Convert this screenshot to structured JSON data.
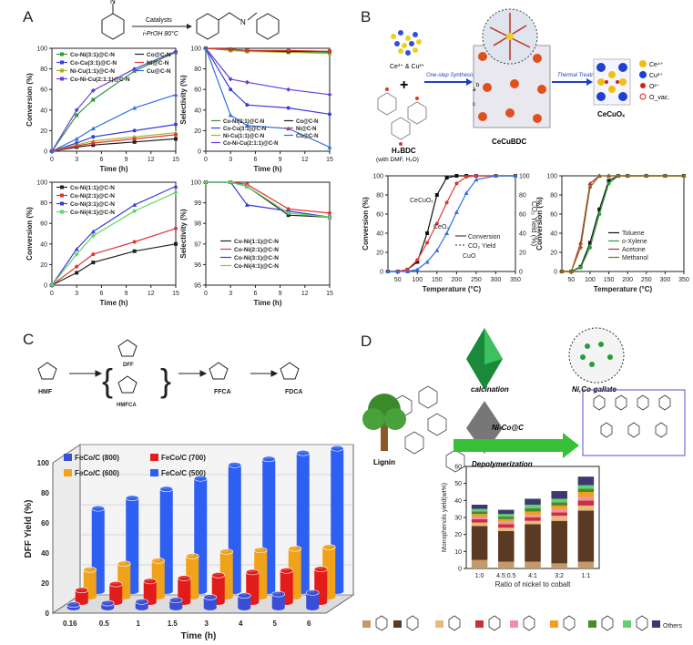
{
  "panels": {
    "a": {
      "letter": "A"
    },
    "b": {
      "letter": "B"
    },
    "c": {
      "letter": "C"
    },
    "d": {
      "letter": "D"
    }
  },
  "scheme_a": {
    "catalyst_label": "Catalysts",
    "condition": "i-PrOH 80°C"
  },
  "scheme_b": {
    "metal_label": "Ce³⁺ & Cu²⁺",
    "linker_label": "H₂BDC",
    "linker_note": "(with DMF, H₂O)",
    "step1": "One-step Synthesis",
    "step2": "Thermal Treatment",
    "mof_label": "CeCuBDC",
    "product_label": "CeCuOₓ",
    "axis_a": "a",
    "axis_b": "b",
    "axis_c": "c",
    "legend": [
      "Ce⁴⁺",
      "Cu²⁺",
      "O²⁻",
      "O_vac."
    ]
  },
  "scheme_c": {
    "hmf": "HMF",
    "dff": "DFF",
    "hmfca": "HMFCA",
    "ffca": "FFCA",
    "fdca": "FDCA"
  },
  "scheme_d": {
    "calcination": "calcination",
    "mof_label": "Ni,Co-gallate",
    "catalyst": "Ni-Co@C",
    "depolymerization": "Depolymerization",
    "lignin": "Lignin",
    "others": "Others"
  },
  "chart_data": [
    {
      "id": "a1",
      "type": "line",
      "xlabel": "Time (h)",
      "ylabel": "Conversion (%)",
      "xlim": [
        0,
        15
      ],
      "ylim": [
        0,
        100
      ],
      "xticks": [
        0,
        3,
        6,
        9,
        12,
        15
      ],
      "yticks": [
        0,
        20,
        40,
        60,
        80,
        100
      ],
      "x": [
        0,
        3,
        5,
        10,
        15
      ],
      "series": [
        {
          "name": "Co-Ni(3:1)@C-N",
          "color": "#2e9b3b",
          "values": [
            0,
            35,
            50,
            78,
            96
          ]
        },
        {
          "name": "Co-Cu(3:1)@C-N",
          "color": "#3b3bd9",
          "values": [
            0,
            8,
            14,
            20,
            26
          ]
        },
        {
          "name": "Ni-Cu(1:1)@C-N",
          "color": "#a8b41e",
          "values": [
            0,
            6,
            10,
            14,
            18
          ]
        },
        {
          "name": "Co-Ni-Cu(2:1:1)@C-N",
          "color": "#6b3bd9",
          "values": [
            0,
            40,
            59,
            80,
            97
          ]
        },
        {
          "name": "Co@C-N",
          "color": "#222222",
          "values": [
            0,
            4,
            6,
            9,
            12
          ]
        },
        {
          "name": "Ni@C-N",
          "color": "#e03535",
          "values": [
            0,
            5,
            8,
            12,
            16
          ]
        },
        {
          "name": "Cu@C-N",
          "color": "#2f6fe0",
          "values": [
            0,
            12,
            22,
            42,
            55
          ]
        }
      ]
    },
    {
      "id": "a2",
      "type": "line",
      "xlabel": "Time (h)",
      "ylabel": "Selectivity (%)",
      "xlim": [
        0,
        15
      ],
      "ylim": [
        0,
        100
      ],
      "xticks": [
        0,
        3,
        6,
        9,
        12,
        15
      ],
      "yticks": [
        0,
        20,
        40,
        60,
        80,
        100
      ],
      "x": [
        0,
        3,
        5,
        10,
        15
      ],
      "series": [
        {
          "name": "Co-Ni(3:1)@C-N",
          "color": "#2e9b3b",
          "values": [
            100,
            98,
            97,
            97,
            96
          ]
        },
        {
          "name": "Co-Cu(3:1)@C-N",
          "color": "#3b3bd9",
          "values": [
            100,
            60,
            45,
            42,
            36
          ]
        },
        {
          "name": "Ni-Cu(1:1)@C-N",
          "color": "#a8b41e",
          "values": [
            100,
            98,
            97,
            96,
            95
          ]
        },
        {
          "name": "Co-Ni-Cu(2:1:1)@C-N",
          "color": "#6b3bd9",
          "values": [
            100,
            70,
            67,
            60,
            55
          ]
        },
        {
          "name": "Co@C-N",
          "color": "#222222",
          "values": [
            100,
            99,
            98,
            97,
            97
          ]
        },
        {
          "name": "Ni@C-N",
          "color": "#e03535",
          "values": [
            100,
            99,
            98,
            98,
            97
          ]
        },
        {
          "name": "Cu@C-N",
          "color": "#2f6fe0",
          "values": [
            100,
            35,
            25,
            22,
            4
          ]
        }
      ]
    },
    {
      "id": "a3",
      "type": "line",
      "xlabel": "Time (h)",
      "ylabel": "Conversion (%)",
      "xlim": [
        0,
        15
      ],
      "ylim": [
        0,
        100
      ],
      "xticks": [
        0,
        3,
        6,
        9,
        12,
        15
      ],
      "yticks": [
        0,
        20,
        40,
        60,
        80,
        100
      ],
      "x": [
        0,
        3,
        5,
        10,
        15
      ],
      "series": [
        {
          "name": "Co-Ni(1:1)@C-N",
          "color": "#222222",
          "values": [
            0,
            12,
            22,
            33,
            40
          ]
        },
        {
          "name": "Co-Ni(2:1)@C-N",
          "color": "#e03535",
          "values": [
            0,
            18,
            30,
            42,
            55
          ]
        },
        {
          "name": "Co-Ni(3:1)@C-N",
          "color": "#3b3bd9",
          "values": [
            0,
            35,
            52,
            78,
            96
          ]
        },
        {
          "name": "Co-Ni(4:1)@C-N",
          "color": "#5fd65f",
          "values": [
            0,
            30,
            48,
            72,
            90
          ]
        }
      ]
    },
    {
      "id": "a4",
      "type": "line",
      "xlabel": "Time (h)",
      "ylabel": "Selectivity (%)",
      "xlim": [
        0,
        15
      ],
      "ylim": [
        95,
        100
      ],
      "xticks": [
        0,
        3,
        6,
        9,
        12,
        15
      ],
      "yticks": [
        95,
        96,
        97,
        98,
        99,
        100
      ],
      "x": [
        0,
        3,
        5,
        10,
        15
      ],
      "series": [
        {
          "name": "Co-Ni(1:1)@C-N",
          "color": "#222222",
          "values": [
            100,
            100,
            99.8,
            98.4,
            98.3
          ]
        },
        {
          "name": "Co-Ni(2:1)@C-N",
          "color": "#e03535",
          "values": [
            100,
            100,
            99.9,
            98.7,
            98.5
          ]
        },
        {
          "name": "Co-Ni(3:1)@C-N",
          "color": "#3b3bd9",
          "values": [
            100,
            100,
            98.9,
            98.6,
            98.3
          ]
        },
        {
          "name": "Co-Ni(4:1)@C-N",
          "color": "#5fd65f",
          "values": [
            100,
            100,
            99.8,
            98.5,
            98.3
          ]
        }
      ]
    },
    {
      "id": "b1",
      "type": "line",
      "xlabel": "Temperature (°C)",
      "ylabel": "Conversion (%)",
      "ylabel2": "CO₂ Yield (%)",
      "xlim": [
        25,
        350
      ],
      "ylim": [
        0,
        100
      ],
      "xticks": [
        50,
        100,
        150,
        200,
        250,
        300,
        350
      ],
      "yticks": [
        0,
        20,
        40,
        60,
        80,
        100
      ],
      "x": [
        25,
        50,
        75,
        100,
        125,
        150,
        175,
        200,
        225,
        250,
        300,
        350
      ],
      "annotations": [
        "CeCuOₓ",
        "CeO₂",
        "CuO"
      ],
      "legend": [
        "Conversion",
        "CO₂ Yield"
      ],
      "series": [
        {
          "name": "CeCuOₓ",
          "color": "#111111",
          "values": [
            0,
            0,
            2,
            10,
            40,
            80,
            98,
            100,
            100,
            100,
            100,
            100
          ]
        },
        {
          "name": "CeO₂",
          "color": "#e03535",
          "values": [
            0,
            0,
            2,
            12,
            30,
            50,
            72,
            92,
            99,
            100,
            100,
            100
          ]
        },
        {
          "name": "CuO",
          "color": "#2f6fe0",
          "values": [
            0,
            0,
            0,
            2,
            10,
            22,
            40,
            62,
            82,
            96,
            100,
            100
          ]
        }
      ]
    },
    {
      "id": "b2",
      "type": "line",
      "xlabel": "Temperature (°C)",
      "ylabel": "Conversion (%)",
      "xlim": [
        25,
        350
      ],
      "ylim": [
        0,
        100
      ],
      "xticks": [
        50,
        100,
        150,
        200,
        250,
        300,
        350
      ],
      "yticks": [
        0,
        20,
        40,
        60,
        80,
        100
      ],
      "x": [
        25,
        50,
        75,
        100,
        125,
        150,
        175,
        200,
        250,
        300,
        350
      ],
      "series": [
        {
          "name": "Toluene",
          "color": "#111111",
          "values": [
            0,
            0,
            5,
            30,
            65,
            95,
            100,
            100,
            100,
            100,
            100
          ]
        },
        {
          "name": "o-Xylene",
          "color": "#2e9b3b",
          "values": [
            0,
            0,
            4,
            25,
            60,
            92,
            100,
            100,
            100,
            100,
            100
          ]
        },
        {
          "name": "Acetone",
          "color": "#b03030",
          "values": [
            0,
            0,
            30,
            92,
            100,
            100,
            100,
            100,
            100,
            100,
            100
          ]
        },
        {
          "name": "Methanol",
          "color": "#8a6a1e",
          "values": [
            0,
            0,
            25,
            88,
            100,
            100,
            100,
            100,
            100,
            100,
            100
          ]
        }
      ]
    },
    {
      "id": "c",
      "type": "bar",
      "xlabel": "Time (h)",
      "ylabel": "DFF Yield (%)",
      "ylim": [
        0,
        100
      ],
      "yticks": [
        0,
        20,
        40,
        60,
        80,
        100
      ],
      "categories": [
        "0.16",
        "0.5",
        "1",
        "1.5",
        "3",
        "4",
        "5",
        "6"
      ],
      "series": [
        {
          "name": "FeCo/C (800)",
          "color": "#3a4fd8",
          "values": [
            2,
            3,
            4,
            5,
            7,
            8,
            9,
            10
          ]
        },
        {
          "name": "FeCo/C (700)",
          "color": "#e21b1b",
          "values": [
            8,
            12,
            14,
            16,
            18,
            20,
            21,
            22
          ]
        },
        {
          "name": "FeCo/C (600)",
          "color": "#f0a21a",
          "values": [
            18,
            22,
            24,
            27,
            30,
            31,
            32,
            33
          ]
        },
        {
          "name": "FeCo/C (500)",
          "color": "#2c5ff2",
          "values": [
            55,
            62,
            68,
            75,
            84,
            88,
            92,
            95
          ]
        }
      ]
    },
    {
      "id": "d",
      "type": "bar",
      "xlabel": "Ratio of nickel to cobalt",
      "ylabel": "Monophenols yield(wt%)",
      "ylim": [
        0,
        60
      ],
      "yticks": [
        0,
        10,
        20,
        30,
        40,
        50,
        60
      ],
      "categories": [
        "1:0",
        "4.5:0.5",
        "4:1",
        "3:2",
        "1:1"
      ],
      "stack_colors": [
        "#c49a6c",
        "#5a3a22",
        "#e8b880",
        "#c8303c",
        "#f090a8",
        "#f0a020",
        "#4a8a2a",
        "#60d070",
        "#3a3a70"
      ],
      "series": [
        {
          "name": "c1",
          "values": [
            5,
            4,
            4,
            3,
            4
          ]
        },
        {
          "name": "c2",
          "values": [
            20,
            18,
            22,
            25,
            30
          ]
        },
        {
          "name": "c3",
          "values": [
            2,
            2,
            2,
            3,
            3
          ]
        },
        {
          "name": "c4",
          "values": [
            2,
            2,
            2,
            2,
            3
          ]
        },
        {
          "name": "c5",
          "values": [
            1.5,
            1.5,
            1.5,
            2,
            2
          ]
        },
        {
          "name": "c6",
          "values": [
            1.5,
            1.5,
            2,
            2,
            3
          ]
        },
        {
          "name": "c7",
          "values": [
            1.5,
            1.5,
            2,
            2,
            2
          ]
        },
        {
          "name": "c8",
          "values": [
            1.5,
            1.5,
            2,
            2,
            2
          ]
        },
        {
          "name": "Others",
          "values": [
            2.5,
            2.5,
            3.5,
            4.5,
            5
          ]
        }
      ]
    }
  ]
}
